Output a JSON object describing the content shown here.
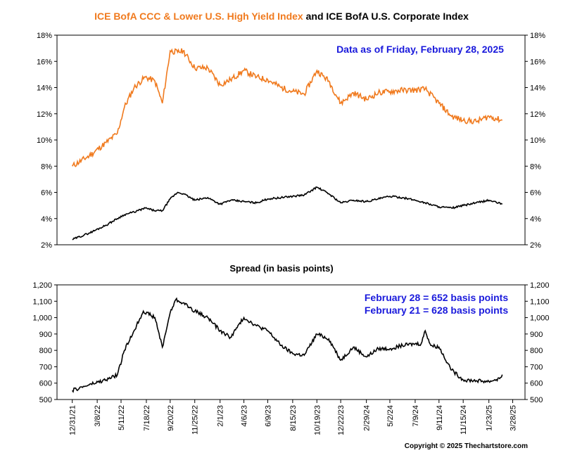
{
  "title": {
    "part1": "ICE BofA CCC & Lower U.S. High Yield Index",
    "part2": " and ICE BofA U.S. Corporate Index",
    "part1_color": "#f07a1e",
    "part2_color": "#000000"
  },
  "top_annotation": "Data as of Friday, February 28, 2025",
  "spread_title": "Spread (in basis points)",
  "spread_annotations": [
    "February 28 = 652 basis points",
    "February 21 = 628 basis points"
  ],
  "copyright": "Copyright © 2025 Thechartstore.com",
  "colors": {
    "ccc": "#f07a1e",
    "corporate": "#000000",
    "annotation": "#1a1adc",
    "gridline": "#000000"
  },
  "chart_data": [
    {
      "type": "line",
      "title": "ICE BofA CCC & Lower U.S. High Yield Index and ICE BofA U.S. Corporate Index",
      "ylim": [
        2,
        18
      ],
      "y_ticks": [
        "2%",
        "4%",
        "6%",
        "8%",
        "10%",
        "12%",
        "14%",
        "16%",
        "18%"
      ],
      "grid": false,
      "x": [
        "2021-12-31",
        "2022-02-15",
        "2022-04-01",
        "2022-05-01",
        "2022-05-20",
        "2022-06-15",
        "2022-07-15",
        "2022-08-10",
        "2022-08-30",
        "2022-09-20",
        "2022-10-10",
        "2022-10-25",
        "2022-11-25",
        "2022-12-30",
        "2023-02-01",
        "2023-03-01",
        "2023-04-06",
        "2023-05-10",
        "2023-06-09",
        "2023-07-15",
        "2023-08-15",
        "2023-09-15",
        "2023-10-19",
        "2023-11-20",
        "2023-12-22",
        "2024-01-25",
        "2024-02-29",
        "2024-04-01",
        "2024-05-02",
        "2024-06-05",
        "2024-07-09",
        "2024-08-05",
        "2024-09-11",
        "2024-10-15",
        "2024-11-15",
        "2024-12-20",
        "2025-01-23",
        "2025-02-28"
      ],
      "series": [
        {
          "values": [
            8.0,
            8.8,
            9.8,
            10.5,
            12.5,
            14.0,
            14.8,
            14.5,
            12.8,
            16.8,
            16.7,
            16.8,
            15.5,
            15.5,
            14.2,
            14.6,
            15.3,
            14.8,
            14.6,
            14.0,
            13.7,
            13.5,
            15.3,
            14.5,
            12.8,
            13.6,
            13.1,
            13.6,
            13.7,
            13.8,
            13.8,
            13.9,
            12.8,
            11.8,
            11.5,
            11.4,
            11.8,
            11.5
          ]
        },
        {
          "values": [
            2.4,
            2.9,
            3.5,
            4.0,
            4.3,
            4.5,
            4.8,
            4.6,
            4.6,
            5.5,
            6.0,
            5.9,
            5.4,
            5.6,
            5.1,
            5.4,
            5.3,
            5.2,
            5.5,
            5.6,
            5.7,
            5.8,
            6.4,
            5.9,
            5.2,
            5.4,
            5.3,
            5.5,
            5.7,
            5.6,
            5.4,
            5.2,
            4.9,
            4.8,
            5.0,
            5.2,
            5.4,
            5.1
          ]
        }
      ]
    },
    {
      "type": "line",
      "title": "Spread (in basis points)",
      "ylim": [
        500,
        1200
      ],
      "y_ticks": [
        "500",
        "600",
        "700",
        "800",
        "900",
        "1,000",
        "1,100",
        "1,200"
      ],
      "x_ticks": [
        "12/31/21",
        "3/8/22",
        "5/11/22",
        "7/18/22",
        "9/20/22",
        "11/25/22",
        "2/1/23",
        "4/6/23",
        "6/9/23",
        "8/15/23",
        "10/19/23",
        "12/22/23",
        "2/29/24",
        "5/2/24",
        "7/9/24",
        "9/11/24",
        "11/15/24",
        "1/23/25",
        "3/28/25"
      ],
      "grid": false,
      "x": [
        "2021-12-31",
        "2022-02-15",
        "2022-04-01",
        "2022-05-01",
        "2022-05-20",
        "2022-06-15",
        "2022-07-10",
        "2022-08-10",
        "2022-08-30",
        "2022-09-20",
        "2022-10-05",
        "2022-10-25",
        "2022-11-25",
        "2022-12-30",
        "2023-02-01",
        "2023-03-01",
        "2023-04-06",
        "2023-05-10",
        "2023-06-09",
        "2023-07-15",
        "2023-08-15",
        "2023-09-15",
        "2023-10-19",
        "2023-11-20",
        "2023-12-22",
        "2024-01-25",
        "2024-02-29",
        "2024-04-01",
        "2024-05-02",
        "2024-06-05",
        "2024-07-09",
        "2024-07-25",
        "2024-08-05",
        "2024-08-20",
        "2024-09-11",
        "2024-10-15",
        "2024-11-15",
        "2024-12-20",
        "2025-01-23",
        "2025-02-21",
        "2025-02-28"
      ],
      "series": [
        {
          "values": [
            555,
            590,
            620,
            650,
            800,
            920,
            1040,
            1000,
            820,
            1030,
            1110,
            1090,
            1040,
            1000,
            920,
            880,
            1000,
            950,
            920,
            830,
            780,
            770,
            900,
            870,
            740,
            820,
            760,
            810,
            810,
            830,
            840,
            840,
            920,
            830,
            820,
            680,
            620,
            615,
            610,
            628,
            652
          ]
        }
      ]
    }
  ]
}
